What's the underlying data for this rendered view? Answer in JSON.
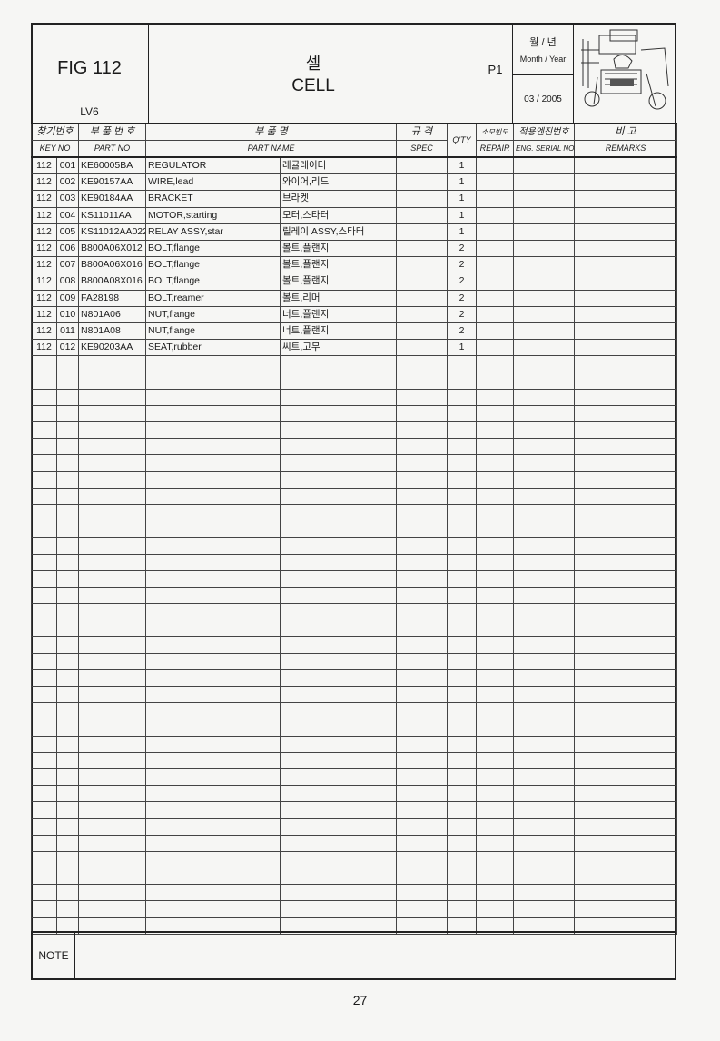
{
  "header": {
    "fig": "FIG 112",
    "model": "LV6",
    "title_korean": "셀",
    "title_english": "CELL",
    "page_code": "P1",
    "month_year_korean": "월 / 년",
    "month_year_label": "Month / Year",
    "date": "03 / 2005"
  },
  "columns": {
    "key_no_kr": "찾기번호",
    "key_no": "KEY NO",
    "part_no_kr": "부 품 번 호",
    "part_no": "PART NO",
    "part_name_kr": "부    품    명",
    "part_name": "PART NAME",
    "spec_kr": "규  격",
    "spec": "SPEC",
    "qty": "Q'TY",
    "repair_kr": "소모빈도",
    "repair": "REPAIR",
    "serial_kr": "적용엔진번호",
    "serial": "ENG. SERIAL NO",
    "remarks_kr": "비        고",
    "remarks": "REMARKS"
  },
  "rows": [
    {
      "fig": "112",
      "key": "001",
      "part_no": "KE60005BA",
      "name_en": "REGULATOR",
      "name_kr": "레귤레이터",
      "spec": "",
      "qty": "1"
    },
    {
      "fig": "112",
      "key": "002",
      "part_no": "KE90157AA",
      "name_en": "WIRE,lead",
      "name_kr": "와이어,리드",
      "spec": "",
      "qty": "1"
    },
    {
      "fig": "112",
      "key": "003",
      "part_no": "KE90184AA",
      "name_en": "BRACKET",
      "name_kr": "브라켓",
      "spec": "",
      "qty": "1"
    },
    {
      "fig": "112",
      "key": "004",
      "part_no": "KS11011AA",
      "name_en": "MOTOR,starting",
      "name_kr": "모터,스타터",
      "spec": "",
      "qty": "1"
    },
    {
      "fig": "112",
      "key": "005",
      "part_no": "KS11012AA022",
      "name_en": "RELAY ASSY,star",
      "name_kr": "릴레이 ASSY,스타터",
      "spec": "",
      "qty": "1"
    },
    {
      "fig": "112",
      "key": "006",
      "part_no": "B800A06X012",
      "name_en": "BOLT,flange",
      "name_kr": "볼트,플랜지",
      "spec": "",
      "qty": "2"
    },
    {
      "fig": "112",
      "key": "007",
      "part_no": "B800A06X016",
      "name_en": "BOLT,flange",
      "name_kr": "볼트,플랜지",
      "spec": "",
      "qty": "2"
    },
    {
      "fig": "112",
      "key": "008",
      "part_no": "B800A08X016",
      "name_en": "BOLT,flange",
      "name_kr": "볼트,플랜지",
      "spec": "",
      "qty": "2"
    },
    {
      "fig": "112",
      "key": "009",
      "part_no": "FA28198",
      "name_en": "BOLT,reamer",
      "name_kr": "볼트,리머",
      "spec": "",
      "qty": "2"
    },
    {
      "fig": "112",
      "key": "010",
      "part_no": "N801A06",
      "name_en": "NUT,flange",
      "name_kr": "너트,플랜지",
      "spec": "",
      "qty": "2"
    },
    {
      "fig": "112",
      "key": "011",
      "part_no": "N801A08",
      "name_en": "NUT,flange",
      "name_kr": "너트,플랜지",
      "spec": "",
      "qty": "2"
    },
    {
      "fig": "112",
      "key": "012",
      "part_no": "KE90203AA",
      "name_en": "SEAT,rubber",
      "name_kr": "씨트,고무",
      "spec": "",
      "qty": "1"
    }
  ],
  "note_label": "NOTE",
  "page_number": "27"
}
